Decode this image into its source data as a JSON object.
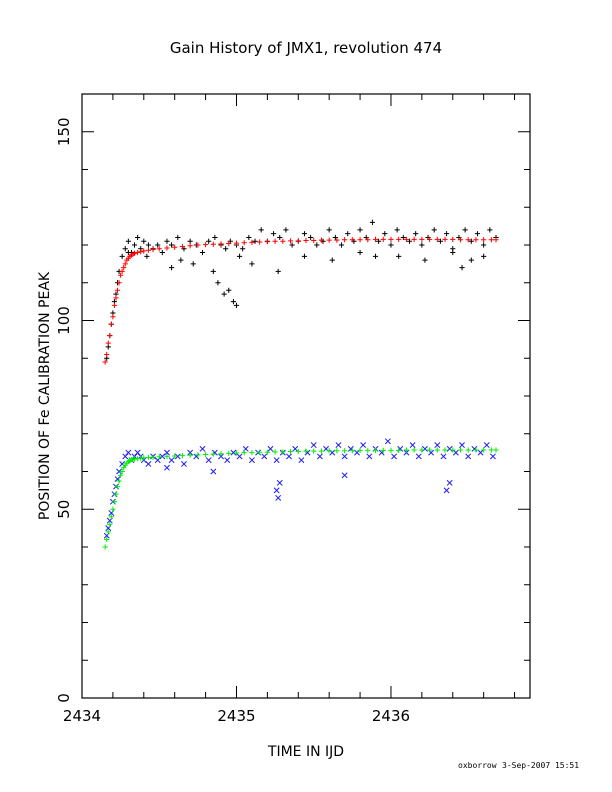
{
  "chart_data": {
    "type": "scatter",
    "title": "Gain History of JMX1, revolution 474",
    "xlabel": "TIME IN IJD",
    "ylabel": "POSITION OF Fe CALIBRATION PEAK",
    "xlim": [
      2434.0,
      2436.9
    ],
    "ylim": [
      0,
      160
    ],
    "xticks": [
      {
        "value": 2434,
        "label": "2434"
      },
      {
        "value": 2435,
        "label": "2435"
      },
      {
        "value": 2436,
        "label": "2436"
      }
    ],
    "yticks": [
      {
        "value": 0,
        "label": "0"
      },
      {
        "value": 50,
        "label": "50"
      },
      {
        "value": 100,
        "label": "100"
      },
      {
        "value": 150,
        "label": "150"
      }
    ],
    "grid": false,
    "series": [
      {
        "marker": "+",
        "color": "#000000",
        "x": [
          2434.16,
          2434.17,
          2434.18,
          2434.19,
          2434.2,
          2434.21,
          2434.22,
          2434.23,
          2434.24,
          2434.26,
          2434.28,
          2434.3,
          2434.32,
          2434.34,
          2434.36,
          2434.38,
          2434.4,
          2434.43,
          2434.46,
          2434.49,
          2434.52,
          2434.55,
          2434.58,
          2434.62,
          2434.66,
          2434.7,
          2434.74,
          2434.78,
          2434.82,
          2434.86,
          2434.9,
          2434.93,
          2434.96,
          2435.0,
          2435.04,
          2435.08,
          2435.12,
          2435.16,
          2435.2,
          2435.24,
          2435.28,
          2435.32,
          2435.36,
          2435.4,
          2435.44,
          2435.48,
          2435.52,
          2435.56,
          2435.6,
          2435.64,
          2435.68,
          2435.72,
          2435.76,
          2435.8,
          2435.84,
          2435.88,
          2435.92,
          2435.96,
          2436.0,
          2436.04,
          2436.08,
          2436.12,
          2436.16,
          2436.2,
          2436.24,
          2436.28,
          2436.32,
          2436.36,
          2436.4,
          2436.44,
          2436.48,
          2436.52,
          2436.56,
          2436.6,
          2436.64,
          2436.68,
          2434.3,
          2434.42,
          2434.58,
          2434.64,
          2434.72,
          2434.85,
          2434.88,
          2434.92,
          2434.95,
          2434.98,
          2435.02,
          2435.1,
          2435.27,
          2435.44,
          2435.62,
          2435.8,
          2435.9,
          2436.05,
          2436.22,
          2436.4,
          2436.46,
          2436.52,
          2436.6,
          2435.0
        ],
        "y": [
          90,
          93,
          96,
          99,
          102,
          105,
          107,
          110,
          113,
          117,
          119,
          121,
          118,
          120,
          122,
          119,
          121,
          120,
          119,
          120,
          118,
          121,
          120,
          122,
          119,
          121,
          120,
          118,
          121,
          122,
          120,
          119,
          121,
          120,
          119,
          122,
          121,
          124,
          121,
          123,
          122,
          124,
          120,
          121,
          123,
          122,
          120,
          121,
          124,
          122,
          120,
          123,
          121,
          124,
          122,
          126,
          121,
          123,
          120,
          124,
          122,
          121,
          123,
          120,
          122,
          124,
          121,
          123,
          119,
          122,
          124,
          121,
          123,
          120,
          124,
          122,
          118,
          117,
          114,
          116,
          115,
          113,
          110,
          107,
          108,
          105,
          117,
          115,
          113,
          117,
          116,
          118,
          117,
          117,
          116,
          118,
          114,
          116,
          117,
          104
        ]
      },
      {
        "marker": "+",
        "color": "#ff0000",
        "x": [
          2434.15,
          2434.16,
          2434.17,
          2434.18,
          2434.19,
          2434.2,
          2434.21,
          2434.22,
          2434.23,
          2434.24,
          2434.25,
          2434.26,
          2434.27,
          2434.28,
          2434.29,
          2434.3,
          2434.31,
          2434.32,
          2434.33,
          2434.34,
          2434.36,
          2434.38,
          2434.4,
          2434.43,
          2434.46,
          2434.5,
          2434.55,
          2434.6,
          2434.65,
          2434.7,
          2434.75,
          2434.8,
          2434.85,
          2434.9,
          2434.95,
          2435.0,
          2435.05,
          2435.1,
          2435.15,
          2435.2,
          2435.25,
          2435.3,
          2435.35,
          2435.4,
          2435.45,
          2435.5,
          2435.55,
          2435.6,
          2435.65,
          2435.7,
          2435.75,
          2435.8,
          2435.85,
          2435.9,
          2435.95,
          2436.0,
          2436.05,
          2436.1,
          2436.15,
          2436.2,
          2436.25,
          2436.3,
          2436.35,
          2436.4,
          2436.45,
          2436.5,
          2436.55,
          2436.6,
          2436.65,
          2436.68
        ],
        "y": [
          89,
          91,
          94,
          96,
          99,
          101,
          104,
          106,
          108,
          110,
          112,
          113,
          114,
          115,
          116,
          116.5,
          117,
          117.3,
          117.6,
          117.8,
          118,
          118.2,
          118.4,
          118.6,
          118.8,
          119,
          119.2,
          119.4,
          119.6,
          119.8,
          120,
          120.1,
          120.2,
          120.3,
          120.4,
          120.5,
          120.6,
          120.7,
          120.8,
          120.9,
          121,
          121,
          121.1,
          121.1,
          121.2,
          121.2,
          121.3,
          121.3,
          121.3,
          121.4,
          121.4,
          121.4,
          121.4,
          121.5,
          121.5,
          121.5,
          121.5,
          121.5,
          121.5,
          121.5,
          121.5,
          121.5,
          121.5,
          121.5,
          121.4,
          121.4,
          121.4,
          121.4,
          121.4,
          121.4
        ]
      },
      {
        "marker": "x",
        "color": "#1a1aff",
        "x": [
          2434.16,
          2434.17,
          2434.18,
          2434.19,
          2434.2,
          2434.21,
          2434.22,
          2434.23,
          2434.24,
          2434.26,
          2434.28,
          2434.3,
          2434.32,
          2434.34,
          2434.36,
          2434.38,
          2434.4,
          2434.43,
          2434.46,
          2434.49,
          2434.52,
          2434.55,
          2434.58,
          2434.62,
          2434.66,
          2434.7,
          2434.74,
          2434.78,
          2434.82,
          2434.86,
          2434.9,
          2434.94,
          2434.98,
          2435.02,
          2435.06,
          2435.1,
          2435.14,
          2435.18,
          2435.22,
          2435.26,
          2435.3,
          2435.34,
          2435.38,
          2435.42,
          2435.46,
          2435.5,
          2435.54,
          2435.58,
          2435.62,
          2435.66,
          2435.7,
          2435.74,
          2435.78,
          2435.82,
          2435.86,
          2435.9,
          2435.94,
          2435.98,
          2436.02,
          2436.06,
          2436.1,
          2436.14,
          2436.18,
          2436.22,
          2436.26,
          2436.3,
          2436.34,
          2436.38,
          2436.42,
          2436.46,
          2436.5,
          2436.54,
          2436.58,
          2436.62,
          2436.66,
          2435.26,
          2435.27,
          2435.28,
          2436.36,
          2436.38,
          2435.7,
          2434.55,
          2434.85
        ],
        "y": [
          43,
          45,
          47,
          49,
          52,
          54,
          56,
          58,
          60,
          62,
          64,
          65,
          63,
          64,
          65,
          64,
          63,
          62,
          64,
          63,
          64,
          65,
          63,
          64,
          62,
          65,
          64,
          66,
          63,
          65,
          64,
          63,
          65,
          64,
          66,
          63,
          65,
          64,
          66,
          63,
          65,
          64,
          66,
          63,
          65,
          67,
          64,
          66,
          65,
          67,
          64,
          66,
          65,
          67,
          64,
          66,
          65,
          68,
          64,
          66,
          65,
          67,
          64,
          66,
          65,
          67,
          64,
          66,
          65,
          67,
          64,
          66,
          65,
          67,
          64,
          55,
          53,
          57,
          55,
          57,
          59,
          61,
          60
        ]
      },
      {
        "marker": "+",
        "color": "#00ee00",
        "x": [
          2434.15,
          2434.16,
          2434.17,
          2434.18,
          2434.19,
          2434.2,
          2434.21,
          2434.22,
          2434.23,
          2434.24,
          2434.25,
          2434.26,
          2434.27,
          2434.28,
          2434.29,
          2434.3,
          2434.31,
          2434.32,
          2434.33,
          2434.34,
          2434.36,
          2434.38,
          2434.4,
          2434.43,
          2434.46,
          2434.5,
          2434.55,
          2434.6,
          2434.65,
          2434.7,
          2434.75,
          2434.8,
          2434.85,
          2434.9,
          2434.95,
          2435.0,
          2435.05,
          2435.1,
          2435.15,
          2435.2,
          2435.25,
          2435.3,
          2435.35,
          2435.4,
          2435.45,
          2435.5,
          2435.55,
          2435.6,
          2435.65,
          2435.7,
          2435.75,
          2435.8,
          2435.85,
          2435.9,
          2435.95,
          2436.0,
          2436.05,
          2436.1,
          2436.15,
          2436.2,
          2436.25,
          2436.3,
          2436.35,
          2436.4,
          2436.45,
          2436.5,
          2436.55,
          2436.6,
          2436.65,
          2436.68
        ],
        "y": [
          40,
          42,
          44,
          46,
          48,
          50,
          52,
          54,
          56,
          57.5,
          59,
          60,
          61,
          61.7,
          62.2,
          62.6,
          62.9,
          63.1,
          63.2,
          63.3,
          63.4,
          63.5,
          63.6,
          63.7,
          63.8,
          63.9,
          64,
          64.1,
          64.2,
          64.3,
          64.4,
          64.5,
          64.6,
          64.7,
          64.8,
          64.9,
          65,
          65,
          65.1,
          65.1,
          65.2,
          65.2,
          65.3,
          65.3,
          65.4,
          65.4,
          65.4,
          65.5,
          65.5,
          65.5,
          65.5,
          65.6,
          65.6,
          65.6,
          65.6,
          65.6,
          65.6,
          65.7,
          65.7,
          65.7,
          65.7,
          65.7,
          65.7,
          65.7,
          65.7,
          65.7,
          65.7,
          65.7,
          65.7,
          65.7
        ]
      }
    ]
  },
  "footer": {
    "user": "oxborrow",
    "timestamp": "3-Sep-2007 15:51"
  }
}
